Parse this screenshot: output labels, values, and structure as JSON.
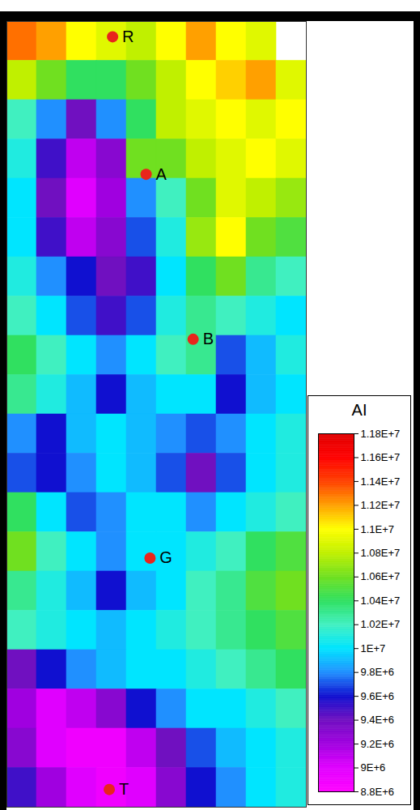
{
  "chart_data": {
    "type": "heatmap",
    "tick_labels": false,
    "xlim": [
      0,
      10
    ],
    "ylim": [
      0,
      20
    ],
    "colors": [
      "#ff00ff",
      "#e000ff",
      "#a000e0",
      "#7010c0",
      "#1010d0",
      "#2090ff",
      "#00e5ff",
      "#40f0c0",
      "#30e060",
      "#70e020",
      "#c0f000",
      "#ffff00",
      "#ffa000",
      "#ff4000",
      "#ff0000",
      "#e00000"
    ],
    "colorbar": {
      "label": "AI",
      "range": [
        8800000,
        11800000
      ],
      "ticks": [
        {
          "value": 11800000,
          "label": "1.18E+7"
        },
        {
          "value": 11600000,
          "label": "1.16E+7"
        },
        {
          "value": 11400000,
          "label": "1.14E+7"
        },
        {
          "value": 11200000,
          "label": "1.12E+7"
        },
        {
          "value": 11000000,
          "label": "1.1E+7"
        },
        {
          "value": 10800000,
          "label": "1.08E+7"
        },
        {
          "value": 10600000,
          "label": "1.06E+7"
        },
        {
          "value": 10400000,
          "label": "1.04E+7"
        },
        {
          "value": 10200000,
          "label": "1.02E+7"
        },
        {
          "value": 10000000,
          "label": "1E+7"
        },
        {
          "value": 9800000,
          "label": "9.8E+6"
        },
        {
          "value": 9600000,
          "label": "9.6E+6"
        },
        {
          "value": 9400000,
          "label": "9.4E+6"
        },
        {
          "value": 9200000,
          "label": "9.2E+6"
        },
        {
          "value": 9000000,
          "label": "9E+6"
        },
        {
          "value": 8800000,
          "label": "8.8E+6"
        }
      ]
    },
    "cells": [
      [
        11300000,
        11200000,
        11000000,
        10900000,
        10800000,
        11000000,
        11200000,
        11000000,
        10900000,
        null
      ],
      [
        10800000,
        10600000,
        10400000,
        10400000,
        10600000,
        10800000,
        11000000,
        11100000,
        11200000,
        10900000
      ],
      [
        10200000,
        9800000,
        9400000,
        9800000,
        10400000,
        10800000,
        10900000,
        11000000,
        10900000,
        11000000
      ],
      [
        10100000,
        9500000,
        9100000,
        9300000,
        10600000,
        10600000,
        10800000,
        10900000,
        11000000,
        10900000
      ],
      [
        10000000,
        9400000,
        9000000,
        9200000,
        9800000,
        10200000,
        10600000,
        10900000,
        10800000,
        10700000
      ],
      [
        10000000,
        9500000,
        9100000,
        9300000,
        9700000,
        10100000,
        10700000,
        11000000,
        10600000,
        10500000
      ],
      [
        10100000,
        9800000,
        9600000,
        9400000,
        9500000,
        10000000,
        10400000,
        10600000,
        10300000,
        10200000
      ],
      [
        10200000,
        10000000,
        9700000,
        9500000,
        9700000,
        10100000,
        10300000,
        10200000,
        10100000,
        10000000
      ],
      [
        10400000,
        10200000,
        10000000,
        9800000,
        10000000,
        10200000,
        10300000,
        9700000,
        9900000,
        10100000
      ],
      [
        10300000,
        10100000,
        9900000,
        9600000,
        9900000,
        10000000,
        10000000,
        9600000,
        9900000,
        10000000
      ],
      [
        9800000,
        9600000,
        9900000,
        10000000,
        9900000,
        9800000,
        9700000,
        9800000,
        10000000,
        10100000
      ],
      [
        9700000,
        9600000,
        9800000,
        10000000,
        9900000,
        9700000,
        9400000,
        9700000,
        10000000,
        10100000
      ],
      [
        10400000,
        10000000,
        9700000,
        9800000,
        10000000,
        10000000,
        9800000,
        10000000,
        10100000,
        10200000
      ],
      [
        10600000,
        10200000,
        10000000,
        9800000,
        10000000,
        10000000,
        10100000,
        10200000,
        10400000,
        10500000
      ],
      [
        10300000,
        10100000,
        9900000,
        9600000,
        9900000,
        10000000,
        10200000,
        10300000,
        10500000,
        10600000
      ],
      [
        10200000,
        10100000,
        10000000,
        9900000,
        10000000,
        10100000,
        10200000,
        10300000,
        10400000,
        10500000
      ],
      [
        9400000,
        9600000,
        9800000,
        9900000,
        10000000,
        10000000,
        10100000,
        10200000,
        10300000,
        10400000
      ],
      [
        9200000,
        9000000,
        9100000,
        9300000,
        9600000,
        9800000,
        10000000,
        10000000,
        10100000,
        10200000
      ],
      [
        9300000,
        9000000,
        8900000,
        8900000,
        9100000,
        9400000,
        9700000,
        9900000,
        10000000,
        10100000
      ],
      [
        9500000,
        9200000,
        9000000,
        8900000,
        9000000,
        9300000,
        9600000,
        9800000,
        10000000,
        10100000
      ]
    ],
    "wells": {
      "color": "#e8251c",
      "marker": "circle",
      "points": [
        {
          "name": "R",
          "x": 3.53,
          "y": 0.39
        },
        {
          "name": "A",
          "x": 4.65,
          "y": 3.89
        },
        {
          "name": "B",
          "x": 6.22,
          "y": 8.09
        },
        {
          "name": "G",
          "x": 4.78,
          "y": 13.66
        },
        {
          "name": "T",
          "x": 3.42,
          "y": 19.55
        }
      ]
    }
  }
}
